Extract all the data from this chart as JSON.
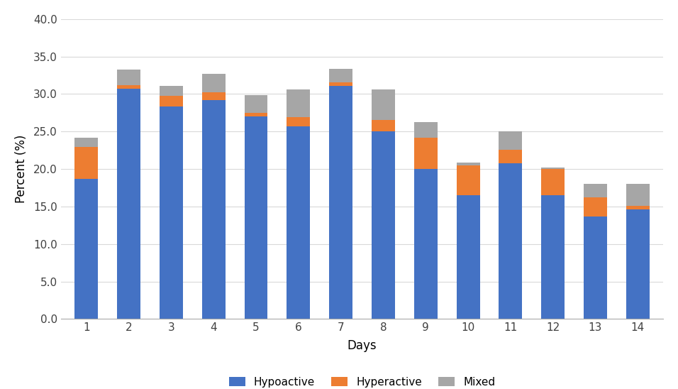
{
  "days": [
    1,
    2,
    3,
    4,
    5,
    6,
    7,
    8,
    9,
    10,
    11,
    12,
    13,
    14
  ],
  "hypoactive": [
    18.7,
    30.7,
    28.3,
    29.2,
    27.0,
    25.7,
    31.1,
    25.0,
    20.0,
    16.5,
    20.8,
    16.5,
    13.7,
    14.6
  ],
  "hyperactive": [
    4.2,
    0.5,
    1.5,
    1.0,
    0.5,
    1.2,
    0.5,
    1.5,
    4.2,
    4.0,
    1.8,
    3.5,
    2.5,
    0.5
  ],
  "mixed": [
    1.3,
    2.1,
    1.3,
    2.5,
    2.4,
    3.7,
    1.8,
    4.1,
    2.1,
    0.4,
    2.4,
    0.2,
    1.8,
    2.9
  ],
  "colors": {
    "hypoactive": "#4472C4",
    "hyperactive": "#ED7D31",
    "mixed": "#A6A6A6"
  },
  "ylabel": "Percent (%)",
  "xlabel": "Days",
  "ylim": [
    0,
    40
  ],
  "yticks": [
    0.0,
    5.0,
    10.0,
    15.0,
    20.0,
    25.0,
    30.0,
    35.0,
    40.0
  ],
  "background_color": "#FFFFFF",
  "legend_labels": [
    "Hypoactive",
    "Hyperactive",
    "Mixed"
  ],
  "bar_width": 0.55
}
